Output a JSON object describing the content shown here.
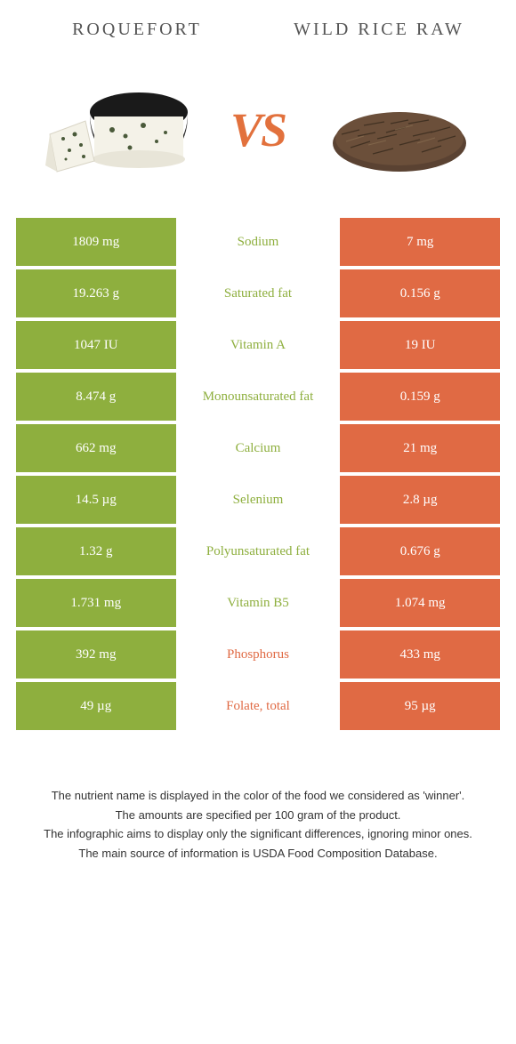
{
  "colors": {
    "left": "#8eaf3e",
    "right": "#e06a44",
    "left_text": "#8eaf3e",
    "right_text": "#e06a44"
  },
  "header": {
    "left_title": "ROQUEFORT",
    "right_title": "WILD RICE RAW",
    "vs": "VS"
  },
  "rows": [
    {
      "left": "1809 mg",
      "label": "Sodium",
      "right": "7 mg",
      "winner": "left"
    },
    {
      "left": "19.263 g",
      "label": "Saturated fat",
      "right": "0.156 g",
      "winner": "left"
    },
    {
      "left": "1047 IU",
      "label": "Vitamin A",
      "right": "19 IU",
      "winner": "left"
    },
    {
      "left": "8.474 g",
      "label": "Monounsaturated fat",
      "right": "0.159 g",
      "winner": "left"
    },
    {
      "left": "662 mg",
      "label": "Calcium",
      "right": "21 mg",
      "winner": "left"
    },
    {
      "left": "14.5 µg",
      "label": "Selenium",
      "right": "2.8 µg",
      "winner": "left"
    },
    {
      "left": "1.32 g",
      "label": "Polyunsaturated fat",
      "right": "0.676 g",
      "winner": "left"
    },
    {
      "left": "1.731 mg",
      "label": "Vitamin B5",
      "right": "1.074 mg",
      "winner": "left"
    },
    {
      "left": "392 mg",
      "label": "Phosphorus",
      "right": "433 mg",
      "winner": "right"
    },
    {
      "left": "49 µg",
      "label": "Folate, total",
      "right": "95 µg",
      "winner": "right"
    }
  ],
  "footer": {
    "line1": "The nutrient name is displayed in the color of the food we considered as 'winner'.",
    "line2": "The amounts are specified per 100 gram of the product.",
    "line3": "The infographic aims to display only the significant differences, ignoring minor ones.",
    "line4": "The main source of information is USDA Food Composition Database."
  }
}
